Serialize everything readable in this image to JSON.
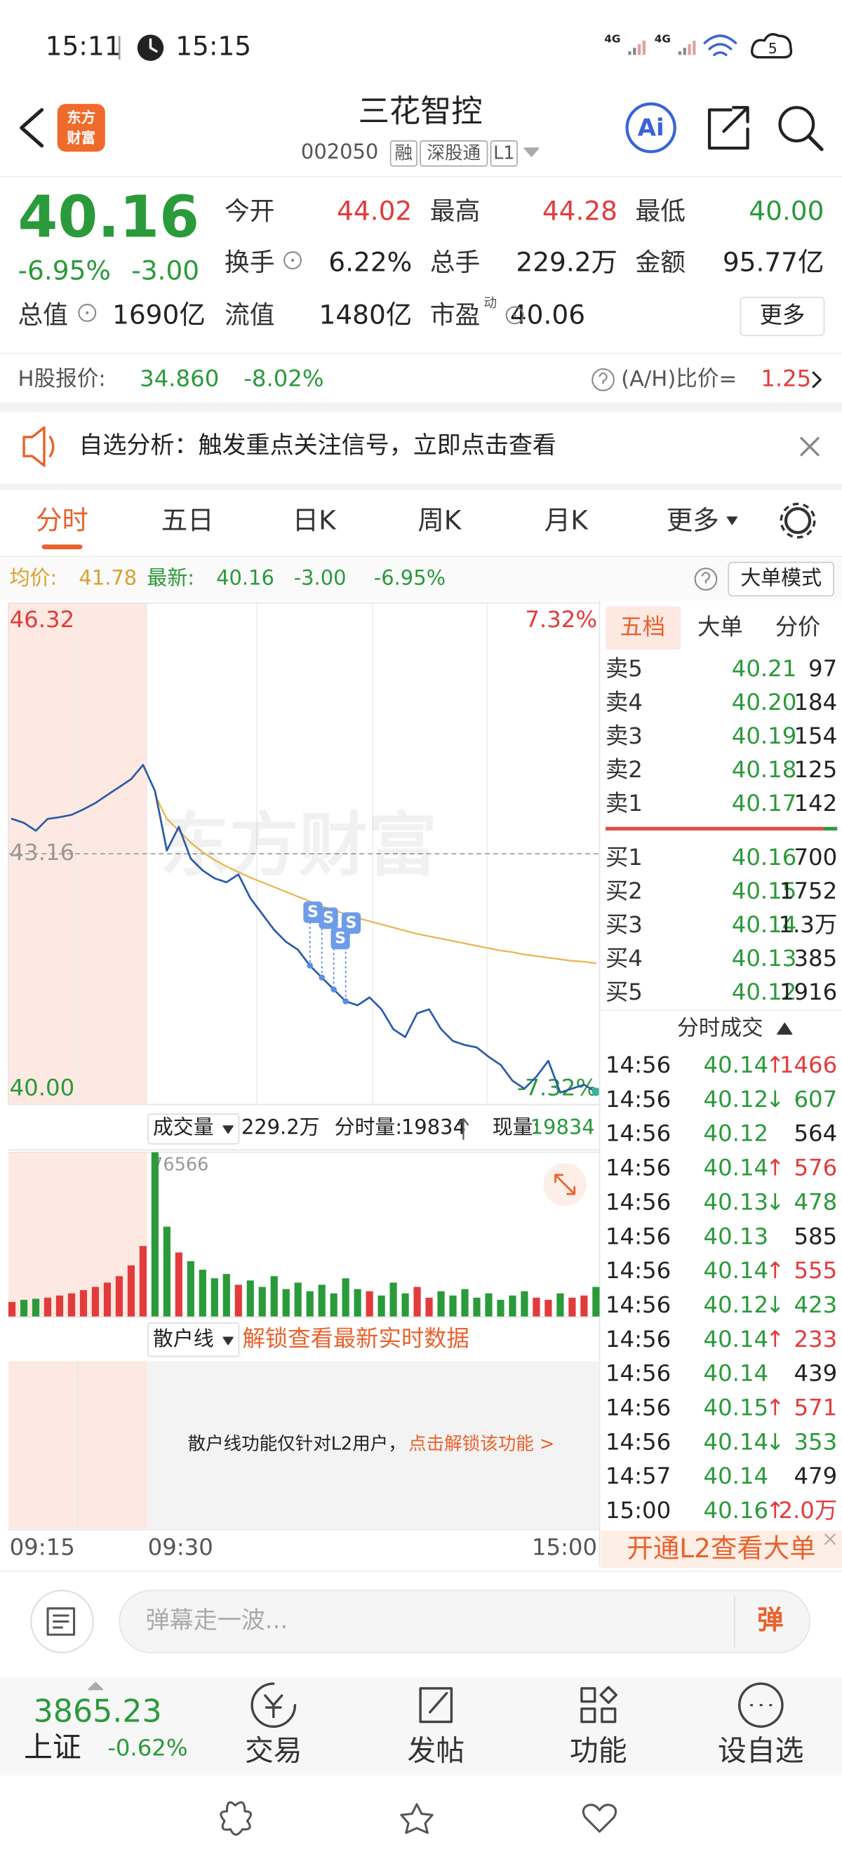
{
  "status": {
    "time": "15:11",
    "clock": "15:15",
    "network": [
      "4G",
      "4G"
    ],
    "battery": "5"
  },
  "header": {
    "logo": [
      "东方",
      "财富"
    ],
    "title": "三花智控",
    "code": "002050",
    "tags": [
      "融",
      "深股通",
      "L1"
    ],
    "ai": "Ai"
  },
  "quote": {
    "price": "40.16",
    "change_pct": "-6.95%",
    "change": "-3.00",
    "fields": [
      {
        "label": "今开",
        "value": "44.02",
        "color": "#e33b3b"
      },
      {
        "label": "最高",
        "value": "44.28",
        "color": "#e33b3b"
      },
      {
        "label": "最低",
        "value": "40.00",
        "color": "#2a9a3a"
      },
      {
        "label": "换手",
        "value": "6.22%"
      },
      {
        "label": "总手",
        "value": "229.2万"
      },
      {
        "label": "金额",
        "value": "95.77亿"
      },
      {
        "label": "总值",
        "value": "1690亿"
      },
      {
        "label": "流值",
        "value": "1480亿"
      },
      {
        "label": "市盈",
        "value": "40.06",
        "sup": "动"
      }
    ],
    "more": "更多"
  },
  "hshare": {
    "label": "H股报价:",
    "price": "34.860",
    "pct": "-8.02%",
    "ratio_label": "(A/H)比价=",
    "ratio": "1.25"
  },
  "banner": {
    "text": "自选分析：触发重点关注信号，立即点击查看"
  },
  "tabs": {
    "items": [
      "分时",
      "五日",
      "日K",
      "周K",
      "月K",
      "更多"
    ],
    "active": 0
  },
  "info": {
    "avg_label": "均价:",
    "avg": "41.78",
    "latest_label": "最新:",
    "latest": "40.16",
    "change": "-3.00",
    "pct": "-6.95%",
    "mode": "大单模式"
  },
  "chart_data": [
    {
      "type": "line",
      "categories": [
        "09:15",
        null,
        null,
        null,
        null,
        null,
        null,
        null,
        null,
        null,
        null,
        null,
        "09:30",
        null,
        null,
        null,
        null,
        null,
        null,
        null,
        null,
        null,
        null,
        null,
        null,
        null,
        null,
        null,
        null,
        null,
        null,
        null,
        null,
        null,
        null,
        null,
        null,
        null,
        null,
        null,
        null,
        null,
        null,
        null,
        null,
        null,
        null,
        null,
        null,
        "15:00"
      ],
      "series": [
        {
          "color": "#2a5ca8",
          "values": [
            43.6,
            43.55,
            43.45,
            43.6,
            43.62,
            43.65,
            43.72,
            43.8,
            43.9,
            44.0,
            44.1,
            44.28,
            43.95,
            43.2,
            43.5,
            43.1,
            42.95,
            42.85,
            42.8,
            42.9,
            42.6,
            42.4,
            42.2,
            42.05,
            41.95,
            41.75,
            41.6,
            41.45,
            41.3,
            41.25,
            41.35,
            41.2,
            40.95,
            40.85,
            41.15,
            41.2,
            40.95,
            40.8,
            40.75,
            40.72,
            40.6,
            40.5,
            40.3,
            40.2,
            40.35,
            40.55,
            40.15,
            40.2,
            40.25,
            40.16
          ]
        },
        {
          "color": "#e9b44c",
          "values": [
            null,
            null,
            null,
            null,
            null,
            null,
            null,
            null,
            null,
            null,
            null,
            null,
            43.9,
            43.6,
            43.45,
            43.3,
            43.18,
            43.08,
            43.0,
            42.93,
            42.86,
            42.8,
            42.74,
            42.68,
            42.62,
            42.56,
            42.5,
            42.45,
            42.4,
            42.35,
            42.31,
            42.27,
            42.23,
            42.19,
            42.15,
            42.12,
            42.09,
            42.06,
            42.03,
            42.0,
            41.97,
            41.94,
            41.92,
            41.89,
            41.87,
            41.85,
            41.83,
            41.81,
            41.8,
            41.78
          ]
        }
      ],
      "ylim": [
        40,
        46.32
      ],
      "yticks": [
        {
          "value": 40,
          "label": "40.00"
        },
        43.16,
        46.32
      ],
      "y2lim": [
        -7.32,
        7.32
      ],
      "y2ticks": [
        {
          "value": -7.32,
          "label": "-7.32%"
        },
        {
          "value": 7.32,
          "label": "7.32%"
        }
      ],
      "up_color": "#e33b3b",
      "down_color": "#2a9a3a"
    },
    {
      "type": "bar",
      "values": [
        7000,
        8000,
        8500,
        9000,
        10000,
        11000,
        12500,
        14000,
        16000,
        19000,
        24000,
        33000,
        76566,
        42000,
        30000,
        26000,
        22000,
        18000,
        20000,
        15000,
        17000,
        14000,
        19000,
        13000,
        16000,
        12000,
        15000,
        11000,
        18000,
        13000,
        12000,
        10000,
        16000,
        11000,
        14000,
        9000,
        12000,
        10000,
        13000,
        9000,
        11000,
        8000,
        10000,
        12000,
        9000,
        8000,
        11000,
        9000,
        10000,
        14000
      ],
      "ylim": [
        0,
        76566
      ],
      "yticks": [
        76566
      ],
      "up_color": "#e33b3b",
      "down_color": "#2a9a3a"
    }
  ],
  "chart_extra": {
    "watermark": "东方财富",
    "signal": "S"
  },
  "volume_bar": {
    "label": "成交量",
    "total": "229.2万",
    "seg_label": "分时量:",
    "seg": "19834",
    "cur_label": "现量:",
    "cur": "19834"
  },
  "retail": {
    "label": "散户线",
    "unlock": "解锁查看最新实时数据",
    "note": "散户线功能仅针对L2用户，",
    "link": "点击解锁该功能 >"
  },
  "book": {
    "tabs": [
      "五档",
      "大单",
      "分价"
    ],
    "asks": [
      {
        "label": "卖5",
        "price": "40.21",
        "vol": "97"
      },
      {
        "label": "卖4",
        "price": "40.20",
        "vol": "184"
      },
      {
        "label": "卖3",
        "price": "40.19",
        "vol": "154"
      },
      {
        "label": "卖2",
        "price": "40.18",
        "vol": "125"
      },
      {
        "label": "卖1",
        "price": "40.17",
        "vol": "142"
      }
    ],
    "bids": [
      {
        "label": "买1",
        "price": "40.16",
        "vol": "700"
      },
      {
        "label": "买2",
        "price": "40.15",
        "vol": "1752"
      },
      {
        "label": "买3",
        "price": "40.14",
        "vol": "1.3万"
      },
      {
        "label": "买4",
        "price": "40.13",
        "vol": "385"
      },
      {
        "label": "买5",
        "price": "40.12",
        "vol": "1916"
      }
    ],
    "trades_title": "分时成交",
    "trades": [
      {
        "time": "14:56",
        "price": "40.14",
        "dir": "↑",
        "vol": "1466"
      },
      {
        "time": "14:56",
        "price": "40.12",
        "dir": "↓",
        "vol": "607"
      },
      {
        "time": "14:56",
        "price": "40.12",
        "vol": "564"
      },
      {
        "time": "14:56",
        "price": "40.14",
        "dir": "↑",
        "vol": "576"
      },
      {
        "time": "14:56",
        "price": "40.13",
        "dir": "↓",
        "vol": "478"
      },
      {
        "time": "14:56",
        "price": "40.13",
        "vol": "585"
      },
      {
        "time": "14:56",
        "price": "40.14",
        "dir": "↑",
        "vol": "555"
      },
      {
        "time": "14:56",
        "price": "40.12",
        "dir": "↓",
        "vol": "423"
      },
      {
        "time": "14:56",
        "price": "40.14",
        "dir": "↑",
        "vol": "233"
      },
      {
        "time": "14:56",
        "price": "40.14",
        "vol": "439"
      },
      {
        "time": "14:56",
        "price": "40.15",
        "dir": "↑",
        "vol": "571"
      },
      {
        "time": "14:56",
        "price": "40.14",
        "dir": "↓",
        "vol": "353"
      },
      {
        "time": "14:57",
        "price": "40.14",
        "vol": "479"
      },
      {
        "time": "15:00",
        "price": "40.16",
        "dir": "↑",
        "vol": "2.0万"
      }
    ],
    "promo": "开通L2查看大单"
  },
  "comment": {
    "placeholder": "弹幕走一波...",
    "button": "弹"
  },
  "bottom": {
    "index_value": "3865.23",
    "index_name": "上证",
    "index_pct": "-0.62%",
    "items": [
      "交易",
      "发帖",
      "功能",
      "设自选"
    ]
  }
}
